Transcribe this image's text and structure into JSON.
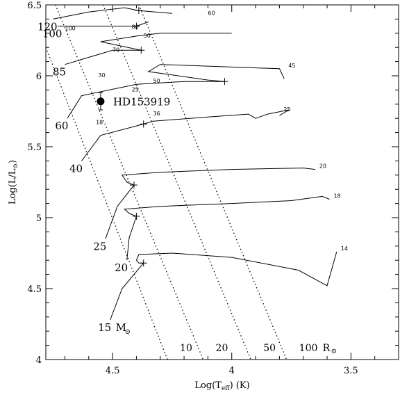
{
  "chart_data": {
    "type": "scatter",
    "title": "",
    "xlabel": "Log(T_eff) (K)",
    "ylabel": "Log(L/L_sun)",
    "xlim": [
      4.78,
      3.3
    ],
    "ylim": [
      4.0,
      6.5
    ],
    "x_reversed": true,
    "xticks": [
      {
        "value": 4.5,
        "label": "4.5"
      },
      {
        "value": 4.0,
        "label": "4"
      },
      {
        "value": 3.5,
        "label": "3.5"
      }
    ],
    "yticks": [
      {
        "value": 4.0,
        "label": "4"
      },
      {
        "value": 4.5,
        "label": "4.5"
      },
      {
        "value": 5.0,
        "label": "5"
      },
      {
        "value": 5.5,
        "label": "5.5"
      },
      {
        "value": 6.0,
        "label": "6"
      },
      {
        "value": 6.5,
        "label": "6.5"
      }
    ],
    "star": {
      "name": "HD153919",
      "logT": 4.55,
      "logL": 5.82,
      "err_logL": 0.06,
      "err_logT": 0.015
    },
    "radius_lines": [
      {
        "label": "10",
        "points": [
          [
            4.78,
            6.2
          ],
          [
            4.27,
            4.0
          ]
        ]
      },
      {
        "label": "20",
        "points": [
          [
            4.74,
            6.5
          ],
          [
            4.12,
            4.0
          ]
        ]
      },
      {
        "label": "50",
        "points": [
          [
            4.54,
            6.5
          ],
          [
            3.92,
            4.0
          ]
        ]
      },
      {
        "label": "100",
        "points": [
          [
            4.39,
            6.5
          ],
          [
            3.77,
            4.0
          ]
        ]
      }
    ],
    "radius_unit_label": "R",
    "tracks": [
      {
        "mass_label": "15",
        "mass_unit": "M",
        "points": [
          [
            4.51,
            4.28
          ],
          [
            4.46,
            4.5
          ],
          [
            4.37,
            4.68
          ],
          [
            4.39,
            4.68
          ],
          [
            4.4,
            4.7
          ],
          [
            4.39,
            4.74
          ],
          [
            4.25,
            4.75
          ],
          [
            4.0,
            4.72
          ],
          [
            3.72,
            4.63
          ],
          [
            3.6,
            4.52
          ],
          [
            3.56,
            4.76
          ]
        ],
        "ticks": [
          {
            "logT": 4.37,
            "logL": 4.68,
            "label": ""
          },
          {
            "logT": 3.56,
            "logL": 4.76,
            "label": "14"
          }
        ]
      },
      {
        "mass_label": "20",
        "points": [
          [
            4.44,
            4.7
          ],
          [
            4.43,
            4.86
          ],
          [
            4.4,
            5.01
          ],
          [
            4.43,
            5.03
          ],
          [
            4.45,
            5.06
          ],
          [
            4.3,
            5.08
          ],
          [
            4.0,
            5.1
          ],
          [
            3.75,
            5.12
          ],
          [
            3.62,
            5.15
          ],
          [
            3.59,
            5.13
          ]
        ],
        "ticks": [
          {
            "logT": 4.4,
            "logL": 5.01,
            "label": ""
          },
          {
            "logT": 3.59,
            "logL": 5.13,
            "label": "18"
          }
        ]
      },
      {
        "mass_label": "25",
        "points": [
          [
            4.53,
            4.85
          ],
          [
            4.48,
            5.08
          ],
          [
            4.41,
            5.23
          ],
          [
            4.44,
            5.25
          ],
          [
            4.46,
            5.3
          ],
          [
            4.3,
            5.32
          ],
          [
            4.0,
            5.34
          ],
          [
            3.7,
            5.35
          ],
          [
            3.65,
            5.34
          ]
        ],
        "ticks": [
          {
            "logT": 4.41,
            "logL": 5.23,
            "label": ""
          },
          {
            "logT": 3.65,
            "logL": 5.34,
            "label": "20"
          }
        ]
      },
      {
        "mass_label": "40",
        "points": [
          [
            4.63,
            5.4
          ],
          [
            4.55,
            5.58
          ],
          [
            4.37,
            5.66
          ],
          [
            4.33,
            5.68
          ],
          [
            4.1,
            5.71
          ],
          [
            3.93,
            5.73
          ],
          [
            3.9,
            5.7
          ],
          [
            3.85,
            5.73
          ],
          [
            3.76,
            5.76
          ],
          [
            3.8,
            5.72
          ]
        ],
        "ticks": [
          {
            "logT": 4.37,
            "logL": 5.66,
            "label": ""
          },
          {
            "logT": 3.8,
            "logL": 5.74,
            "label": "25"
          }
        ]
      },
      {
        "mass_label": "60",
        "points": [
          [
            4.69,
            5.7
          ],
          [
            4.63,
            5.86
          ],
          [
            4.4,
            5.94
          ],
          [
            4.2,
            5.96
          ],
          [
            4.03,
            5.96
          ],
          [
            4.1,
            5.97
          ],
          [
            4.35,
            6.03
          ],
          [
            4.3,
            6.08
          ],
          [
            3.8,
            6.05
          ],
          [
            3.78,
            5.98
          ]
        ],
        "ticks": [
          {
            "logT": 4.03,
            "logL": 5.96,
            "label": ""
          },
          {
            "logT": 3.78,
            "logL": 6.05,
            "label": "45"
          }
        ]
      },
      {
        "mass_label": "85",
        "points": [
          [
            4.7,
            6.08
          ],
          [
            4.62,
            6.12
          ],
          [
            4.5,
            6.18
          ],
          [
            4.38,
            6.18
          ],
          [
            4.55,
            6.24
          ],
          [
            4.4,
            6.28
          ],
          [
            4.3,
            6.3
          ],
          [
            4.0,
            6.3
          ]
        ],
        "ticks": [
          {
            "logT": 4.38,
            "logL": 6.18,
            "label": ""
          }
        ]
      },
      {
        "mass_label": "100",
        "points": [
          [
            4.73,
            6.35
          ],
          [
            4.62,
            6.35
          ],
          [
            4.4,
            6.35
          ],
          [
            4.35,
            6.38
          ]
        ],
        "ticks": [
          {
            "logT": 4.4,
            "logL": 6.35,
            "label": ""
          }
        ]
      },
      {
        "mass_label": "120",
        "points": [
          [
            4.75,
            6.4
          ],
          [
            4.6,
            6.45
          ],
          [
            4.45,
            6.48
          ],
          [
            4.39,
            6.46
          ],
          [
            4.25,
            6.44
          ]
        ],
        "ticks": [
          {
            "logT": 4.39,
            "logL": 6.46,
            "label": ""
          }
        ]
      }
    ],
    "annotations": [
      {
        "text": "100",
        "logT": 4.7,
        "logL": 6.32
      },
      {
        "text": "80",
        "logT": 4.42,
        "logL": 6.33
      },
      {
        "text": "60",
        "logT": 4.1,
        "logL": 6.43
      },
      {
        "text": "50",
        "logT": 4.37,
        "logL": 6.27
      },
      {
        "text": "70",
        "logT": 4.5,
        "logL": 6.17
      },
      {
        "text": "30",
        "logT": 4.56,
        "logL": 5.99
      },
      {
        "text": "50",
        "logT": 4.33,
        "logL": 5.95
      },
      {
        "text": "25",
        "logT": 4.42,
        "logL": 5.89
      },
      {
        "text": "36",
        "logT": 4.33,
        "logL": 5.72
      },
      {
        "text": "18",
        "logT": 4.57,
        "logL": 5.66
      }
    ]
  },
  "colors": {
    "line": "#000000",
    "background": "#ffffff"
  }
}
